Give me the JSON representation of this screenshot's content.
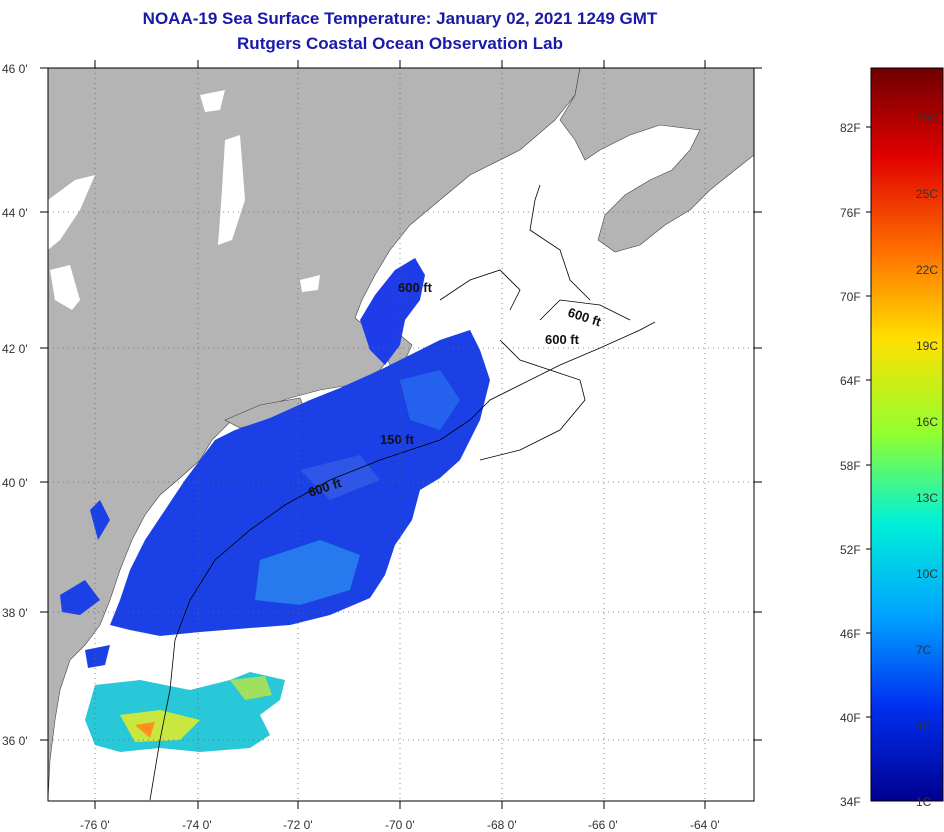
{
  "header": {
    "title_line1": "NOAA-19 Sea Surface Temperature:  January 02, 2021 1249 GMT",
    "title_line2": "Rutgers Coastal Ocean Observation Lab"
  },
  "latitude_labels": [
    "46 0'",
    "44 0'",
    "42 0'",
    "40 0'",
    "38 0'",
    "36 0'"
  ],
  "longitude_labels": [
    "-76 0'",
    "-74 0'",
    "-72 0'",
    "-70 0'",
    "-68 0'",
    "-66 0'",
    "-64 0'"
  ],
  "contour_labels": [
    "600 ft",
    "600 ft",
    "600 ft",
    "150 ft",
    "600 ft"
  ],
  "colorbar": {
    "fahrenheit_labels": [
      "82F",
      "76F",
      "70F",
      "64F",
      "58F",
      "52F",
      "46F",
      "40F",
      "34F"
    ],
    "celsius_labels": [
      "28C",
      "25C",
      "22C",
      "19C",
      "16C",
      "13C",
      "10C",
      "7C",
      "4C",
      "1C"
    ],
    "colors": [
      "#7a0000",
      "#d40000",
      "#ff5a00",
      "#ffb000",
      "#ffff00",
      "#80ff40",
      "#00ffcc",
      "#00b0ff",
      "#0040ff",
      "#0000a0"
    ]
  },
  "colors": {
    "title": "#1a1aa8",
    "land": "#b4b4b4",
    "water_no_data": "#ffffff",
    "sst_cold": "#1030e0"
  }
}
